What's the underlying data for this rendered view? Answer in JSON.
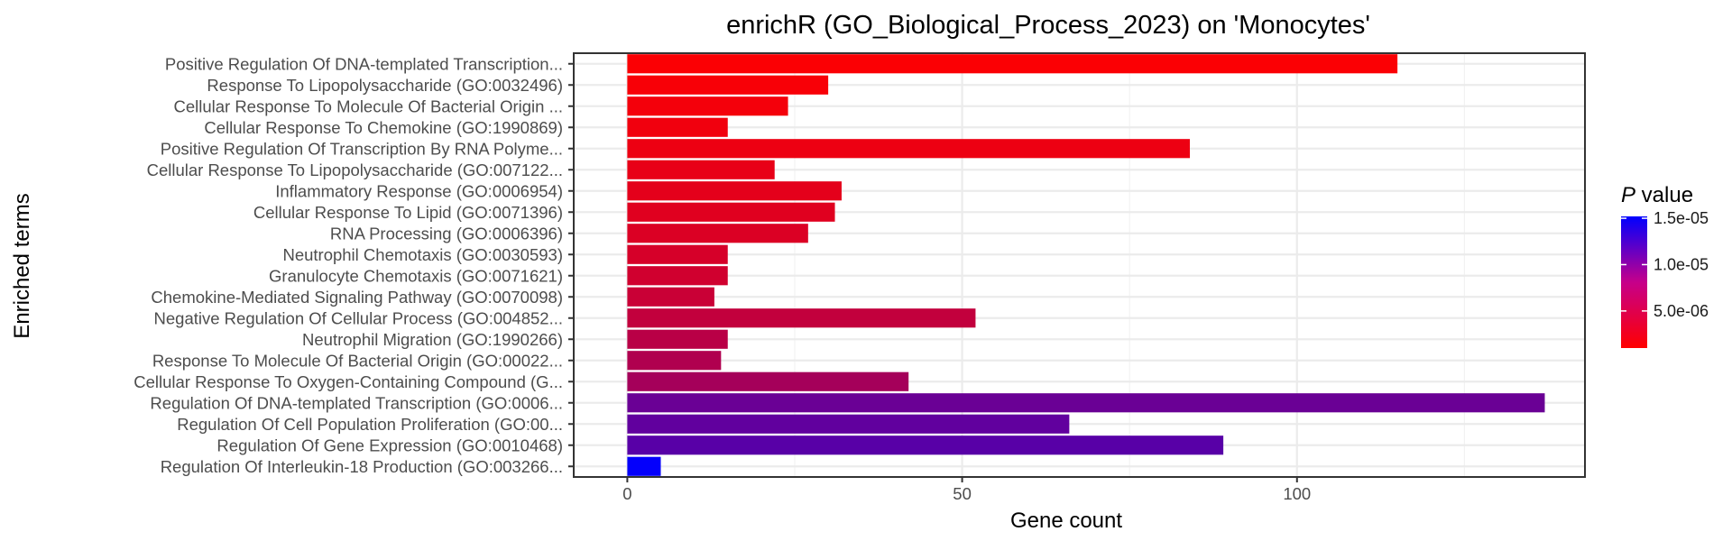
{
  "chart_data": {
    "type": "bar",
    "orientation": "horizontal",
    "title": "enrichR (GO_Biological_Process_2023) on 'Monocytes'",
    "xlabel": "Gene count",
    "ylabel": "Enriched terms",
    "xlim": [
      -8,
      143
    ],
    "x_ticks": [
      0,
      50,
      100
    ],
    "grid": true,
    "categories": [
      "Positive Regulation Of DNA-templated Transcription...",
      "Response To Lipopolysaccharide (GO:0032496)",
      "Cellular Response To Molecule Of Bacterial Origin ...",
      "Cellular Response To Chemokine (GO:1990869)",
      "Positive Regulation Of Transcription By RNA Polyme...",
      "Cellular Response To Lipopolysaccharide (GO:007122...",
      "Inflammatory Response (GO:0006954)",
      "Cellular Response To Lipid (GO:0071396)",
      "RNA Processing (GO:0006396)",
      "Neutrophil Chemotaxis (GO:0030593)",
      "Granulocyte Chemotaxis (GO:0071621)",
      "Chemokine-Mediated Signaling Pathway (GO:0070098)",
      "Negative Regulation Of Cellular Process (GO:004852...",
      "Neutrophil Migration (GO:1990266)",
      "Response To Molecule Of Bacterial Origin (GO:00022...",
      "Cellular Response To Oxygen-Containing Compound (G...",
      "Regulation Of DNA-templated Transcription (GO:0006...",
      "Regulation Of Cell Population Proliferation (GO:00...",
      "Regulation Of Gene Expression (GO:0010468)",
      "Regulation Of Interleukin-18 Production (GO:003266..."
    ],
    "values": [
      115,
      30,
      24,
      15,
      84,
      22,
      32,
      31,
      27,
      15,
      15,
      13,
      52,
      15,
      14,
      42,
      137,
      66,
      89,
      5
    ],
    "p_values": [
      1.2e-06,
      1.4e-06,
      1.6e-06,
      1.8e-06,
      2e-06,
      2.3e-06,
      2.5e-06,
      2.7e-06,
      3e-06,
      3.3e-06,
      3.6e-06,
      4e-06,
      4.4e-06,
      4.9e-06,
      5.4e-06,
      6e-06,
      9.3e-06,
      9.8e-06,
      1.03e-05,
      1.5e-05
    ],
    "legend": {
      "title_italic": "P",
      "title_rest": " value",
      "placement": "right",
      "min": 1e-06,
      "max": 1.52e-05,
      "ticks": [
        {
          "value": 1.5e-05,
          "label": "1.5e-05"
        },
        {
          "value": 1e-05,
          "label": "1.0e-05"
        },
        {
          "value": 5e-06,
          "label": "5.0e-06"
        }
      ],
      "low_color": "#ff0000",
      "high_color": "#0000ff"
    }
  }
}
